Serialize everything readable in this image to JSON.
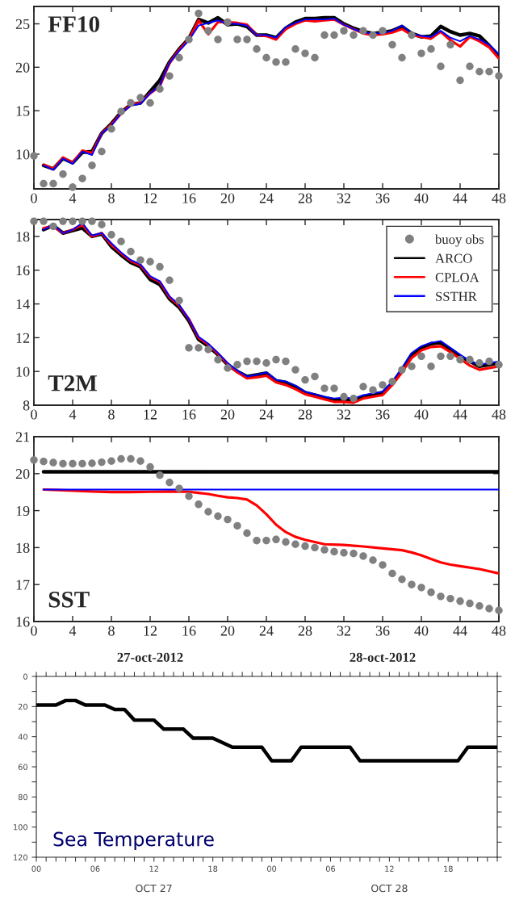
{
  "chart_data": [
    {
      "type": "line",
      "title": "FF10",
      "xlim": [
        0,
        48
      ],
      "ylim": [
        6,
        27
      ],
      "xticks": [
        0,
        4,
        8,
        12,
        16,
        20,
        24,
        28,
        32,
        36,
        40,
        44,
        48
      ],
      "yticks": [
        10,
        15,
        20,
        25
      ],
      "grid": false,
      "series": [
        {
          "type": "scatter",
          "marker": "circle",
          "color": "#808080",
          "x": [
            0,
            1,
            2,
            3,
            4,
            5,
            6,
            7,
            8,
            9,
            10,
            11,
            12,
            13,
            14,
            15,
            16,
            17,
            18,
            19,
            20,
            21,
            22,
            23,
            24,
            25,
            26,
            27,
            28,
            29,
            30,
            31,
            32,
            33,
            34,
            35,
            36,
            37,
            38,
            39,
            40,
            41,
            42,
            43,
            44,
            45,
            46,
            47,
            48
          ],
          "values": [
            9.8,
            6.6,
            6.6,
            7.7,
            6.2,
            7.2,
            8.7,
            10.3,
            12.9,
            14.9,
            15.9,
            16.5,
            15.9,
            17.5,
            19.0,
            21.1,
            23.2,
            26.2,
            24.2,
            23.2,
            25.2,
            23.2,
            23.2,
            22.1,
            21.1,
            20.6,
            20.6,
            22.1,
            21.6,
            21.1,
            23.7,
            23.7,
            24.2,
            23.7,
            24.2,
            23.7,
            24.2,
            22.6,
            21.1,
            23.7,
            21.6,
            22.1,
            20.1,
            22.6,
            18.5,
            20.1,
            19.5,
            19.5,
            19.0
          ]
        },
        {
          "color": "#000000",
          "x": [
            1,
            2,
            3,
            4,
            5,
            6,
            7,
            8,
            9,
            10,
            11,
            12,
            13,
            14,
            15,
            16,
            17,
            18,
            19,
            20,
            21,
            22,
            23,
            24,
            25,
            26,
            27,
            28,
            29,
            30,
            31,
            32,
            33,
            34,
            35,
            36,
            37,
            38,
            39,
            40,
            41,
            42,
            43,
            44,
            45,
            46,
            47,
            48
          ],
          "values": [
            8.7,
            8.3,
            9.5,
            9.0,
            10.2,
            10.3,
            12.4,
            13.5,
            14.8,
            15.7,
            15.9,
            17.2,
            18.5,
            20.6,
            22.1,
            23.3,
            25.5,
            25.1,
            25.7,
            24.9,
            25.0,
            24.7,
            23.7,
            23.7,
            23.4,
            24.5,
            25.2,
            25.6,
            25.6,
            25.7,
            25.7,
            25.0,
            24.5,
            24.1,
            23.9,
            24.0,
            24.2,
            24.7,
            23.9,
            23.5,
            23.6,
            24.7,
            24.1,
            23.7,
            23.9,
            23.6,
            22.5,
            21.3
          ]
        },
        {
          "color": "#ff0000",
          "x": [
            1,
            2,
            3,
            4,
            5,
            6,
            7,
            8,
            9,
            10,
            11,
            12,
            13,
            14,
            15,
            16,
            17,
            18,
            19,
            20,
            21,
            22,
            23,
            24,
            25,
            26,
            27,
            28,
            29,
            30,
            31,
            32,
            33,
            34,
            35,
            36,
            37,
            38,
            39,
            40,
            41,
            42,
            43,
            44,
            45,
            46,
            47,
            48
          ],
          "values": [
            8.8,
            8.3,
            9.6,
            9.0,
            10.4,
            10.1,
            12.4,
            13.4,
            14.7,
            15.7,
            15.9,
            17.0,
            17.8,
            20.5,
            22.0,
            23.2,
            25.4,
            23.8,
            25.2,
            25.2,
            25.1,
            24.9,
            23.7,
            23.6,
            23.2,
            24.4,
            25.0,
            25.4,
            25.3,
            25.4,
            25.5,
            24.9,
            24.4,
            23.9,
            23.7,
            23.8,
            24.0,
            24.4,
            23.7,
            23.5,
            23.3,
            24.1,
            23.1,
            22.4,
            23.5,
            23.0,
            22.3,
            21.0
          ]
        },
        {
          "color": "#0000ff",
          "x": [
            1,
            2,
            3,
            4,
            5,
            6,
            7,
            8,
            9,
            10,
            11,
            12,
            13,
            14,
            15,
            16,
            17,
            18,
            19,
            20,
            21,
            22,
            23,
            24,
            25,
            26,
            27,
            28,
            29,
            30,
            31,
            32,
            33,
            34,
            35,
            36,
            37,
            38,
            39,
            40,
            41,
            42,
            43,
            44,
            45,
            46,
            47,
            48
          ],
          "values": [
            8.7,
            8.2,
            9.5,
            8.9,
            10.3,
            9.9,
            12.4,
            13.3,
            14.7,
            15.6,
            15.8,
            17.0,
            17.9,
            20.5,
            21.9,
            23.1,
            24.8,
            25.1,
            25.4,
            25.0,
            25.0,
            24.8,
            23.7,
            23.7,
            23.4,
            24.6,
            25.1,
            25.5,
            25.5,
            25.5,
            25.6,
            24.9,
            24.4,
            24.0,
            23.9,
            23.9,
            24.2,
            24.8,
            23.9,
            23.6,
            23.5,
            24.2,
            23.4,
            23.0,
            23.6,
            23.2,
            22.6,
            21.5
          ]
        }
      ]
    },
    {
      "type": "line",
      "title": "T2M",
      "xlim": [
        0,
        48
      ],
      "ylim": [
        8,
        19
      ],
      "xticks": [
        0,
        4,
        8,
        12,
        16,
        20,
        24,
        28,
        32,
        36,
        40,
        44,
        48
      ],
      "yticks": [
        8,
        10,
        12,
        14,
        16,
        18
      ],
      "grid": false,
      "legend": "top right",
      "series": [
        {
          "type": "scatter",
          "marker": "circle",
          "name": "buoy obs",
          "color": "#808080",
          "x": [
            0,
            1,
            2,
            3,
            4,
            5,
            6,
            7,
            8,
            9,
            10,
            11,
            12,
            13,
            14,
            15,
            16,
            17,
            18,
            19,
            20,
            21,
            22,
            23,
            24,
            25,
            26,
            27,
            28,
            29,
            30,
            31,
            32,
            33,
            34,
            35,
            36,
            37,
            38,
            39,
            40,
            41,
            42,
            43,
            44,
            45,
            46,
            47,
            48
          ],
          "values": [
            18.9,
            18.9,
            18.6,
            18.9,
            18.9,
            18.9,
            18.9,
            18.7,
            18.1,
            17.7,
            17.1,
            16.6,
            16.5,
            16.2,
            15.4,
            14.2,
            11.4,
            11.4,
            11.3,
            10.7,
            10.2,
            10.4,
            10.6,
            10.6,
            10.5,
            10.7,
            10.6,
            10.1,
            9.5,
            9.7,
            9.0,
            9.0,
            8.5,
            8.4,
            9.1,
            8.9,
            9.2,
            9.4,
            10.1,
            10.3,
            10.9,
            10.3,
            10.9,
            10.9,
            10.7,
            10.7,
            10.5,
            10.6,
            10.4
          ]
        },
        {
          "name": "ARCO",
          "color": "#000000",
          "x": [
            1,
            2,
            3,
            4,
            5,
            6,
            7,
            8,
            9,
            10,
            11,
            12,
            13,
            14,
            15,
            16,
            17,
            18,
            19,
            20,
            21,
            22,
            23,
            24,
            25,
            26,
            27,
            28,
            29,
            30,
            31,
            32,
            33,
            34,
            35,
            36,
            37,
            38,
            39,
            40,
            41,
            42,
            43,
            44,
            45,
            46,
            47,
            48
          ],
          "values": [
            18.4,
            18.65,
            18.2,
            18.35,
            18.5,
            18.0,
            18.15,
            17.4,
            16.9,
            16.45,
            16.2,
            15.45,
            15.15,
            14.3,
            13.8,
            13.0,
            11.9,
            11.5,
            11.0,
            10.4,
            10.0,
            9.7,
            9.8,
            9.9,
            9.45,
            9.35,
            9.1,
            8.75,
            8.6,
            8.45,
            8.3,
            8.3,
            8.3,
            8.5,
            8.65,
            8.75,
            9.3,
            10.1,
            11.0,
            11.4,
            11.65,
            11.7,
            11.3,
            10.9,
            10.6,
            10.3,
            10.4,
            10.5
          ]
        },
        {
          "name": "CPLOA",
          "color": "#ff0000",
          "x": [
            1,
            2,
            3,
            4,
            5,
            6,
            7,
            8,
            9,
            10,
            11,
            12,
            13,
            14,
            15,
            16,
            17,
            18,
            19,
            20,
            21,
            22,
            23,
            24,
            25,
            26,
            27,
            28,
            29,
            30,
            31,
            32,
            33,
            34,
            35,
            36,
            37,
            38,
            39,
            40,
            41,
            42,
            43,
            44,
            45,
            46,
            47,
            48
          ],
          "values": [
            18.5,
            18.6,
            18.2,
            18.4,
            18.7,
            18.0,
            18.2,
            17.5,
            17.0,
            16.55,
            16.3,
            15.6,
            15.3,
            14.4,
            13.9,
            13.1,
            12.0,
            11.6,
            11.05,
            10.45,
            9.95,
            9.6,
            9.65,
            9.75,
            9.35,
            9.2,
            8.95,
            8.65,
            8.5,
            8.35,
            8.2,
            8.2,
            8.15,
            8.4,
            8.5,
            8.6,
            9.2,
            9.95,
            10.8,
            11.25,
            11.45,
            11.5,
            11.15,
            10.75,
            10.35,
            10.1,
            10.2,
            10.3
          ]
        },
        {
          "name": "SSTHR",
          "color": "#0000ff",
          "x": [
            1,
            2,
            3,
            4,
            5,
            6,
            7,
            8,
            9,
            10,
            11,
            12,
            13,
            14,
            15,
            16,
            17,
            18,
            19,
            20,
            21,
            22,
            23,
            24,
            25,
            26,
            27,
            28,
            29,
            30,
            31,
            32,
            33,
            34,
            35,
            36,
            37,
            38,
            39,
            40,
            41,
            42,
            43,
            44,
            45,
            46,
            47,
            48
          ],
          "values": [
            18.4,
            18.7,
            18.2,
            18.4,
            18.8,
            18.05,
            18.2,
            17.6,
            17.05,
            16.6,
            16.35,
            15.65,
            15.35,
            14.45,
            13.95,
            13.1,
            12.05,
            11.65,
            11.1,
            10.5,
            10.05,
            9.7,
            9.8,
            9.95,
            9.5,
            9.4,
            9.15,
            8.8,
            8.65,
            8.5,
            8.4,
            8.45,
            8.4,
            8.6,
            8.7,
            8.8,
            9.4,
            10.2,
            11.1,
            11.5,
            11.7,
            11.8,
            11.4,
            11.0,
            10.6,
            10.4,
            10.5,
            10.6
          ]
        }
      ]
    },
    {
      "type": "line",
      "title": "SST",
      "xlim": [
        0,
        48
      ],
      "ylim": [
        16,
        21
      ],
      "xticks": [
        0,
        4,
        8,
        12,
        16,
        20,
        24,
        28,
        32,
        36,
        40,
        44,
        48
      ],
      "yticks": [
        16,
        17,
        18,
        19,
        20,
        21
      ],
      "grid": false,
      "annotations": [
        "27-oct-2012",
        "28-oct-2012"
      ],
      "series": [
        {
          "type": "scatter",
          "marker": "circle",
          "color": "#808080",
          "x": [
            0,
            1,
            2,
            3,
            4,
            5,
            6,
            7,
            8,
            9,
            10,
            11,
            12,
            13,
            14,
            15,
            16,
            17,
            18,
            19,
            20,
            21,
            22,
            23,
            24,
            25,
            26,
            27,
            28,
            29,
            30,
            31,
            32,
            33,
            34,
            35,
            36,
            37,
            38,
            39,
            40,
            41,
            42,
            43,
            44,
            45,
            46,
            47,
            48
          ],
          "values": [
            20.37,
            20.33,
            20.3,
            20.27,
            20.27,
            20.27,
            20.28,
            20.31,
            20.34,
            20.4,
            20.4,
            20.34,
            20.18,
            19.96,
            19.76,
            19.6,
            19.39,
            19.17,
            18.97,
            18.85,
            18.76,
            18.59,
            18.39,
            18.19,
            18.19,
            18.22,
            18.15,
            18.09,
            18.04,
            18.0,
            17.94,
            17.89,
            17.86,
            17.84,
            17.77,
            17.66,
            17.53,
            17.3,
            17.14,
            17.0,
            16.92,
            16.79,
            16.68,
            16.62,
            16.55,
            16.49,
            16.42,
            16.35,
            16.3
          ]
        },
        {
          "color": "#000000",
          "x": [
            1,
            48
          ],
          "values": [
            20.05,
            20.05
          ]
        },
        {
          "color": "#ff0000",
          "x": [
            1,
            2,
            4,
            6,
            8,
            10,
            12,
            14,
            16,
            17,
            18,
            19,
            20,
            21,
            22,
            23,
            24,
            25,
            26,
            27,
            28,
            29,
            30,
            32,
            34,
            36,
            38,
            39,
            40,
            41,
            42,
            43,
            44,
            46,
            48
          ],
          "values": [
            19.57,
            19.56,
            19.54,
            19.52,
            19.5,
            19.5,
            19.51,
            19.52,
            19.51,
            19.48,
            19.45,
            19.4,
            19.36,
            19.34,
            19.3,
            19.14,
            18.9,
            18.62,
            18.42,
            18.29,
            18.21,
            18.15,
            18.09,
            18.07,
            18.03,
            17.98,
            17.93,
            17.87,
            17.79,
            17.69,
            17.6,
            17.54,
            17.5,
            17.42,
            17.3
          ]
        },
        {
          "color": "#0000ff",
          "x": [
            1,
            48
          ],
          "values": [
            19.57,
            19.57
          ]
        }
      ]
    },
    {
      "type": "line",
      "xlim": [
        0,
        47
      ],
      "ylim": [
        120,
        0
      ],
      "grid": false,
      "annotations": [
        "Sea Temperature",
        "OCT 27",
        "OCT 28"
      ],
      "xticks": [
        {
          "value": 0,
          "label": "00"
        },
        {
          "value": 1,
          "label": null
        },
        {
          "value": 2,
          "label": null
        },
        {
          "value": 3,
          "label": null
        },
        {
          "value": 4,
          "label": null
        },
        {
          "value": 5,
          "label": null
        },
        {
          "value": 6,
          "label": "06"
        },
        {
          "value": 7,
          "label": null
        },
        {
          "value": 8,
          "label": null
        },
        {
          "value": 9,
          "label": null
        },
        {
          "value": 10,
          "label": null
        },
        {
          "value": 11,
          "label": null
        },
        {
          "value": 12,
          "label": "12"
        },
        {
          "value": 13,
          "label": null
        },
        {
          "value": 14,
          "label": null
        },
        {
          "value": 15,
          "label": null
        },
        {
          "value": 16,
          "label": null
        },
        {
          "value": 17,
          "label": null
        },
        {
          "value": 18,
          "label": "18"
        },
        {
          "value": 19,
          "label": null
        },
        {
          "value": 20,
          "label": null
        },
        {
          "value": 21,
          "label": null
        },
        {
          "value": 22,
          "label": null
        },
        {
          "value": 23,
          "label": null
        },
        {
          "value": 24,
          "label": "00"
        },
        {
          "value": 25,
          "label": null
        },
        {
          "value": 26,
          "label": null
        },
        {
          "value": 27,
          "label": null
        },
        {
          "value": 28,
          "label": null
        },
        {
          "value": 29,
          "label": null
        },
        {
          "value": 30,
          "label": "06"
        },
        {
          "value": 31,
          "label": null
        },
        {
          "value": 32,
          "label": null
        },
        {
          "value": 33,
          "label": null
        },
        {
          "value": 34,
          "label": null
        },
        {
          "value": 35,
          "label": null
        },
        {
          "value": 36,
          "label": "12"
        },
        {
          "value": 37,
          "label": null
        },
        {
          "value": 38,
          "label": null
        },
        {
          "value": 39,
          "label": null
        },
        {
          "value": 40,
          "label": null
        },
        {
          "value": 41,
          "label": null
        },
        {
          "value": 42,
          "label": "18"
        },
        {
          "value": 43,
          "label": null
        },
        {
          "value": 44,
          "label": null
        },
        {
          "value": 45,
          "label": null
        },
        {
          "value": 46,
          "label": null
        },
        {
          "value": 47,
          "label": null
        }
      ],
      "yticks": [
        0,
        {
          "value": 10,
          "label": null
        },
        20,
        {
          "value": 30,
          "label": null
        },
        40,
        {
          "value": 50,
          "label": null
        },
        60,
        {
          "value": 70,
          "label": null
        },
        80,
        {
          "value": 90,
          "label": null
        },
        100,
        {
          "value": 110,
          "label": null
        },
        120
      ],
      "series": [
        {
          "color": "#000000",
          "x": [
            0,
            2,
            3,
            4,
            5,
            7,
            8,
            9,
            10,
            12,
            13,
            15,
            16,
            18,
            20,
            23,
            24,
            26,
            27,
            32,
            33,
            43,
            44,
            47
          ],
          "values": [
            19,
            19,
            16,
            16,
            19,
            19,
            22,
            22,
            29,
            29,
            35,
            35,
            41,
            41,
            47,
            47,
            56,
            56,
            47,
            47,
            56,
            56,
            47,
            47
          ]
        }
      ]
    }
  ]
}
